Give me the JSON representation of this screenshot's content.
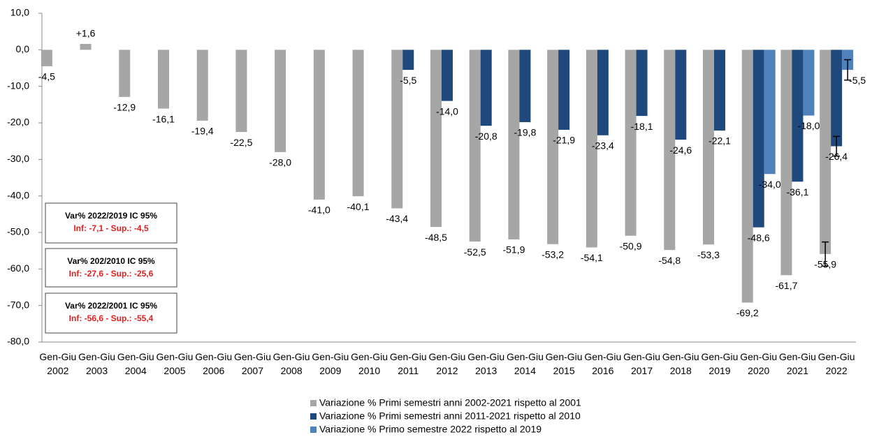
{
  "chart_data": {
    "type": "bar",
    "categories": [
      "Gen-Giu 2002",
      "Gen-Giu 2003",
      "Gen-Giu 2004",
      "Gen-Giu 2005",
      "Gen-Giu 2006",
      "Gen-Giu 2007",
      "Gen-Giu 2008",
      "Gen-Giu 2009",
      "Gen-Giu 2010",
      "Gen-Giu 2011",
      "Gen-Giu 2012",
      "Gen-Giu 2013",
      "Gen-Giu 2014",
      "Gen-Giu 2015",
      "Gen-Giu 2016",
      "Gen-Giu 2017",
      "Gen-Giu 2018",
      "Gen-Giu 2019",
      "Gen-Giu 2020",
      "Gen-Giu 2021",
      "Gen-Giu 2022"
    ],
    "series": [
      {
        "name": "Variazione % Primi semestri anni 2002-2021 rispetto al 2001",
        "color": "#a6a6a6",
        "values": [
          -4.5,
          1.6,
          -12.9,
          -16.1,
          -19.4,
          -22.5,
          -28.0,
          -41.0,
          -40.1,
          -43.4,
          -48.5,
          -52.5,
          -51.9,
          -53.2,
          -54.1,
          -50.9,
          -54.8,
          -53.3,
          -69.2,
          -61.7,
          -55.9
        ],
        "value_labels": [
          "-4,5",
          "+1,6",
          "-12,9",
          "-16,1",
          "-19,4",
          "-22,5",
          "-28,0",
          "-41,0",
          "-40,1",
          "-43,4",
          "-48,5",
          "-52,5",
          "-51,9",
          "-53,2",
          "-54,1",
          "-50,9",
          "-54,8",
          "-53,3",
          "-69,2",
          "-61,7",
          "-55,9"
        ],
        "errors": [
          null,
          null,
          null,
          null,
          null,
          null,
          null,
          null,
          null,
          null,
          null,
          null,
          null,
          null,
          null,
          null,
          null,
          null,
          null,
          null,
          3.3
        ]
      },
      {
        "name": "Variazione % Primi semestri anni 2011-2021 rispetto al 2010",
        "color": "#1f497d",
        "values": [
          null,
          null,
          null,
          null,
          null,
          null,
          null,
          null,
          null,
          -5.5,
          -14.0,
          -20.8,
          -19.8,
          -21.9,
          -23.4,
          -18.1,
          -24.6,
          -22.1,
          -48.6,
          -36.1,
          -26.4
        ],
        "value_labels": [
          null,
          null,
          null,
          null,
          null,
          null,
          null,
          null,
          null,
          "-5,5",
          "-14,0",
          "-20,8",
          "-19,8",
          "-21,9",
          "-23,4",
          "-18,1",
          "-24,6",
          "-22,1",
          "-48,6",
          "-36,1",
          "-26,4"
        ],
        "errors": [
          null,
          null,
          null,
          null,
          null,
          null,
          null,
          null,
          null,
          null,
          null,
          null,
          null,
          null,
          null,
          null,
          null,
          null,
          null,
          null,
          2.7
        ]
      },
      {
        "name": "Variazione % Primo semestre 2022 rispetto al 2019",
        "color": "#4f81bd",
        "values": [
          null,
          null,
          null,
          null,
          null,
          null,
          null,
          null,
          null,
          null,
          null,
          null,
          null,
          null,
          null,
          null,
          null,
          null,
          -34.0,
          -18.0,
          -5.5
        ],
        "value_labels": [
          null,
          null,
          null,
          null,
          null,
          null,
          null,
          null,
          null,
          null,
          null,
          null,
          null,
          null,
          null,
          null,
          null,
          null,
          "-34,0",
          "-18,0",
          "-5,5"
        ],
        "errors": [
          null,
          null,
          null,
          null,
          null,
          null,
          null,
          null,
          null,
          null,
          null,
          null,
          null,
          null,
          null,
          null,
          null,
          null,
          null,
          null,
          2.8
        ]
      }
    ],
    "ylim": [
      -80,
      10
    ],
    "yticks": [
      {
        "value": -80,
        "label": "-80,0"
      },
      {
        "value": -70,
        "label": "-70,0"
      },
      {
        "value": -60,
        "label": "-60,0"
      },
      {
        "value": -50,
        "label": "-50,0"
      },
      {
        "value": -40,
        "label": "-40,0"
      },
      {
        "value": -30,
        "label": "-30,0"
      },
      {
        "value": -20,
        "label": "-20,0"
      },
      {
        "value": -10,
        "label": "-10,0"
      },
      {
        "value": 0,
        "label": "0,0"
      },
      {
        "value": 10,
        "label": "10,0"
      }
    ],
    "grid": false,
    "legend": "bottom",
    "annotations": [
      {
        "title": "Var% 2022/2019  IC 95%",
        "text": "Inf: -7,1 - Sup.: -4,5"
      },
      {
        "title": "Var% 202/2010 IC 95%",
        "text": "Inf: -27,6 - Sup.: -25,6"
      },
      {
        "title": "Var% 2022/2001  IC 95%",
        "text": "Inf: -56,6 - Sup.: -55,4"
      }
    ]
  }
}
